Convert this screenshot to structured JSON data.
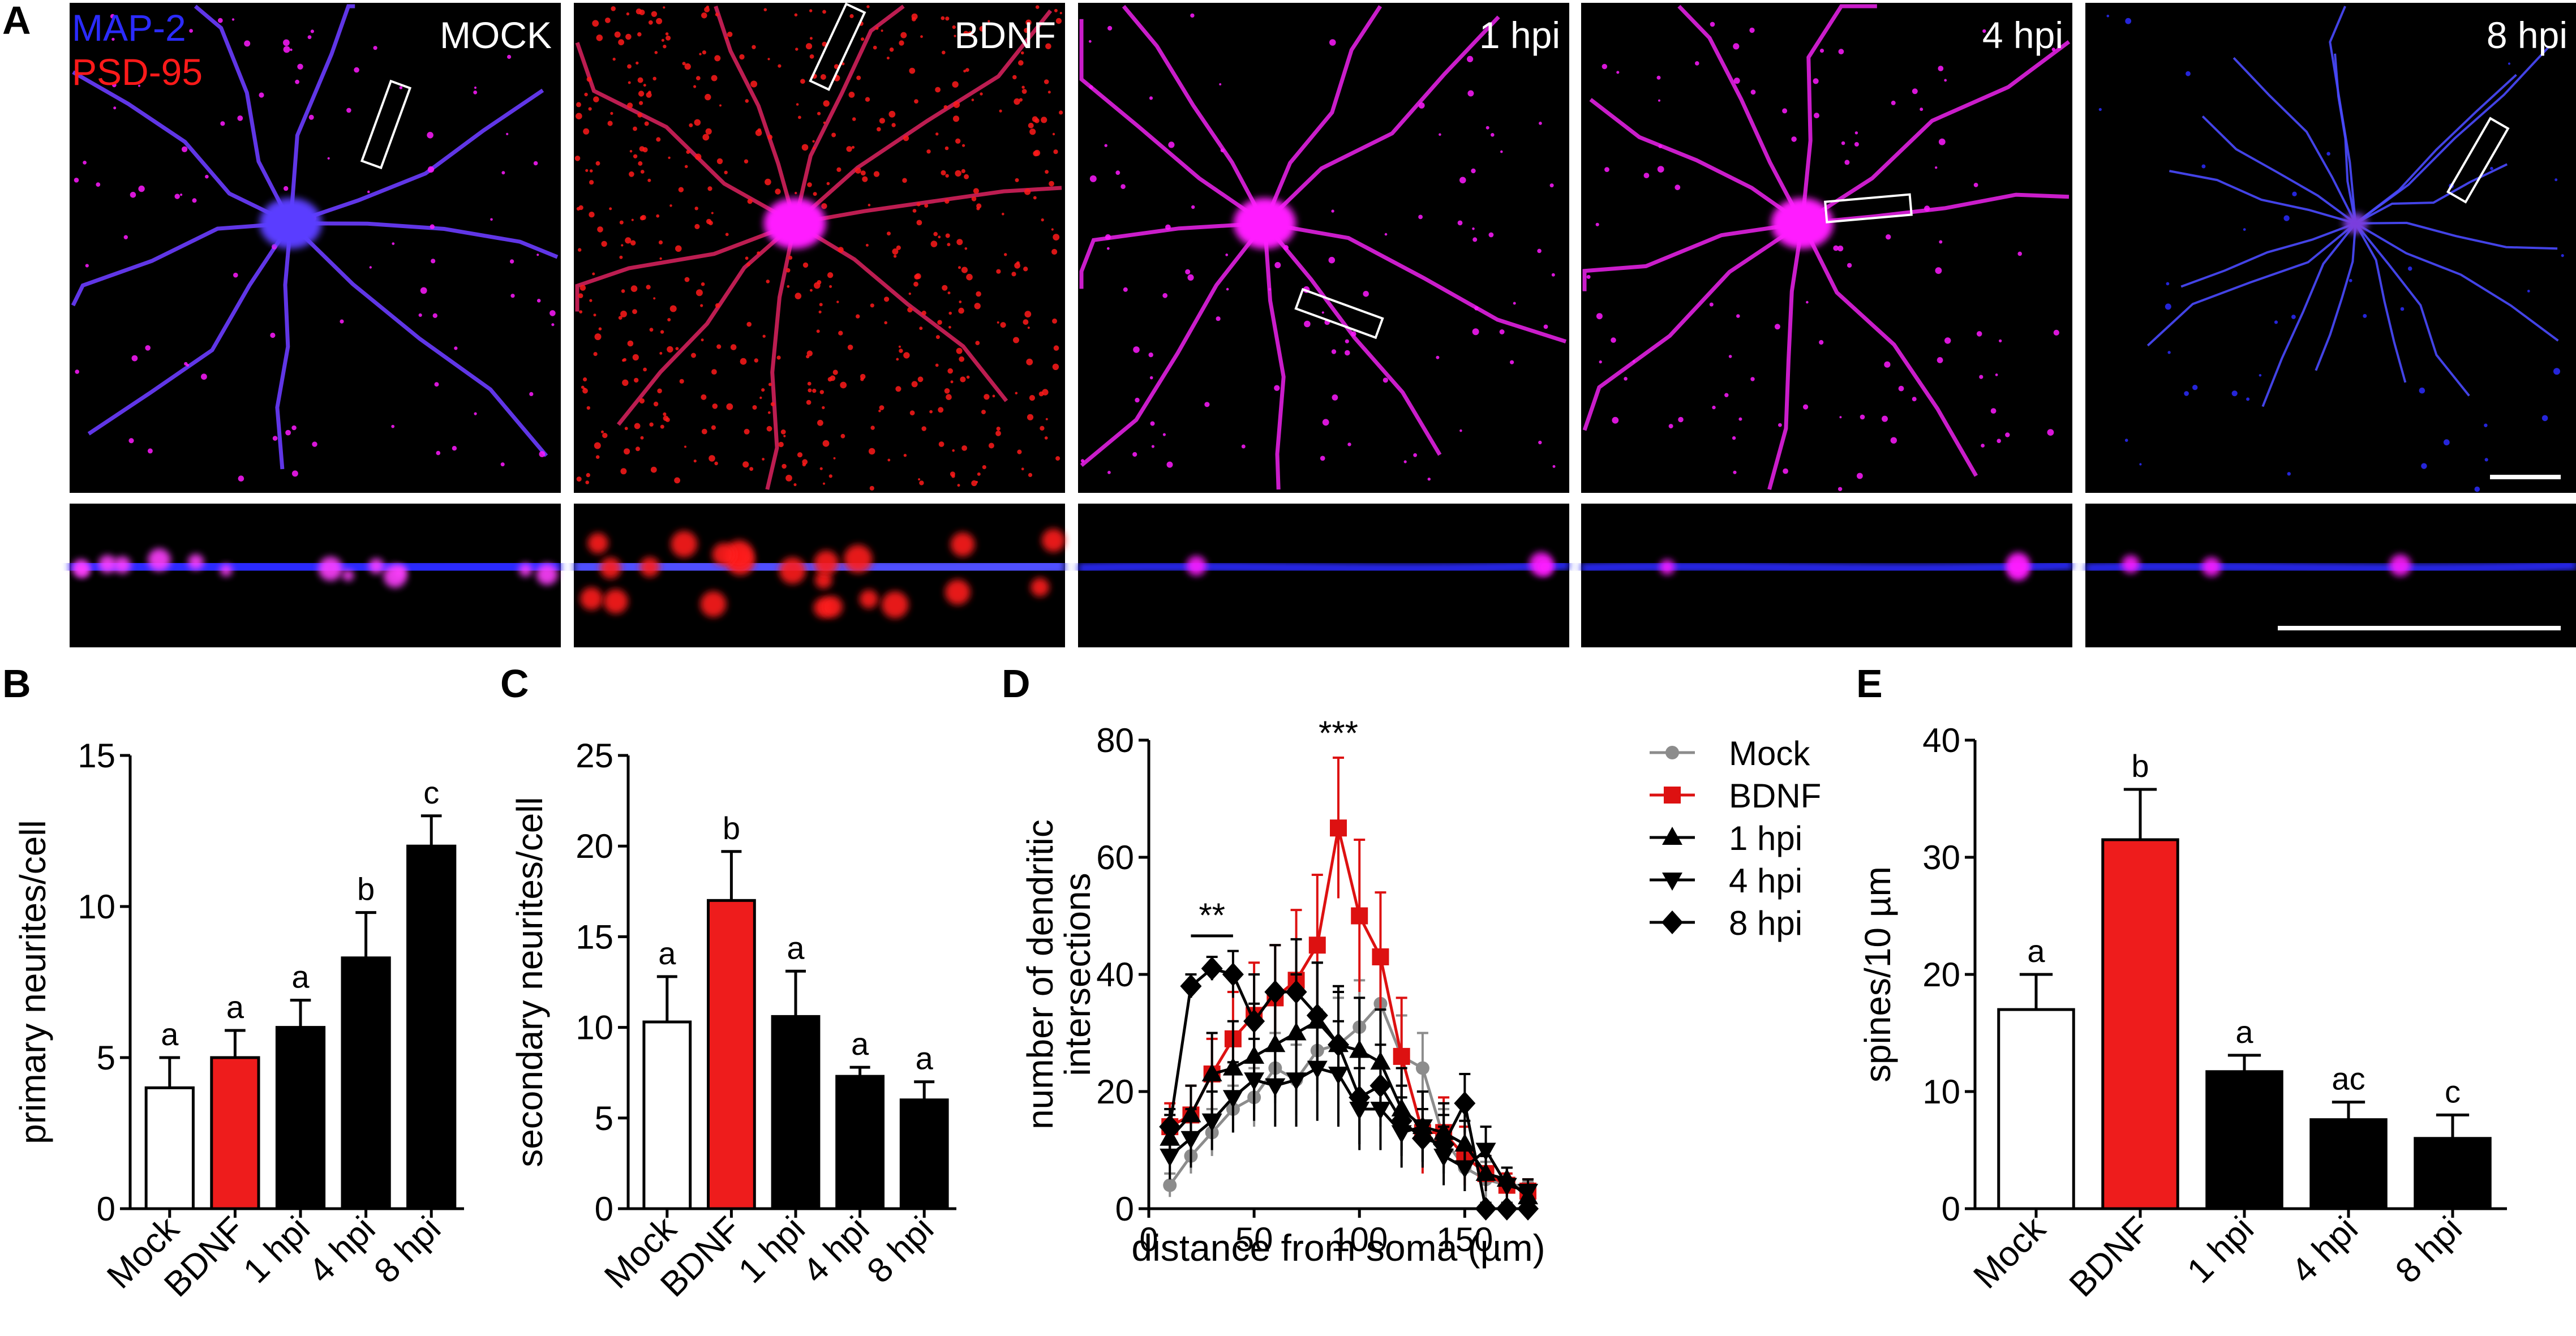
{
  "panel_letters": {
    "A": "A",
    "B": "B",
    "C": "C",
    "D": "D",
    "E": "E"
  },
  "micrographs": {
    "legend_map2": "MAP-2",
    "legend_psd95": "PSD-95",
    "tiles": [
      {
        "label": "MOCK",
        "tone": "blue-magenta"
      },
      {
        "label": "BDNF",
        "tone": "red-puncta"
      },
      {
        "label": "1 hpi",
        "tone": "magenta-neuron"
      },
      {
        "label": "4 hpi",
        "tone": "magenta-neuron"
      },
      {
        "label": "8 hpi",
        "tone": "blue-sparse"
      }
    ],
    "colors": {
      "map2": "#2b2bff",
      "psd95": "#ff1a1a",
      "merge": "#ff1aff",
      "background": "#000000"
    }
  },
  "colors": {
    "mock": "#ffffff",
    "bdnf": "#ee1c1c",
    "hpi": "#000000",
    "mock_line": "#8c8c8c",
    "bdnf_line": "#dd1111"
  },
  "chart_data": [
    {
      "id": "B",
      "type": "bar",
      "ylabel": "primary neurites/cell",
      "ylim": [
        0,
        15
      ],
      "yticks": [
        0,
        5,
        10,
        15
      ],
      "categories": [
        "Mock",
        "BDNF",
        "1 hpi",
        "4 hpi",
        "8 hpi"
      ],
      "values": [
        4.0,
        5.0,
        6.0,
        8.3,
        12.0
      ],
      "errors": [
        1.0,
        0.9,
        0.9,
        1.5,
        1.0
      ],
      "letters": [
        "a",
        "a",
        "a",
        "b",
        "c"
      ]
    },
    {
      "id": "C",
      "type": "bar",
      "ylabel": "secondary neurites/cell",
      "ylim": [
        0,
        25
      ],
      "yticks": [
        0,
        5,
        10,
        15,
        20,
        25
      ],
      "categories": [
        "Mock",
        "BDNF",
        "1 hpi",
        "4 hpi",
        "8 hpi"
      ],
      "values": [
        10.3,
        17.0,
        10.6,
        7.3,
        6.0
      ],
      "errors": [
        2.5,
        2.7,
        2.5,
        0.5,
        1.0
      ],
      "letters": [
        "a",
        "b",
        "a",
        "a",
        "a"
      ]
    },
    {
      "id": "D",
      "type": "line",
      "ylabel": "number of dendritic intersections",
      "ylabel_lines": [
        "number of dendritic",
        "intersections"
      ],
      "xlabel": "distance from soma (µm)",
      "xlim": [
        0,
        180
      ],
      "ylim": [
        0,
        80
      ],
      "xticks": [
        0,
        50,
        100,
        150
      ],
      "yticks": [
        0,
        20,
        40,
        60,
        80
      ],
      "annotations": [
        {
          "text": "**",
          "x": 30,
          "y": 46,
          "bar": [
            20,
            40
          ]
        },
        {
          "text": "***",
          "x": 90,
          "y": 80
        }
      ],
      "x": [
        10,
        20,
        30,
        40,
        50,
        60,
        70,
        80,
        90,
        100,
        110,
        120,
        130,
        140,
        150,
        160,
        170,
        180
      ],
      "series": [
        {
          "name": "Mock",
          "marker": "circle",
          "values": [
            4,
            9,
            13,
            17,
            19,
            24,
            22,
            27,
            28,
            31,
            35,
            26,
            24,
            12,
            7,
            5,
            4,
            4
          ],
          "errors": [
            2,
            3,
            4,
            4,
            5,
            6,
            6,
            7,
            8,
            8,
            8,
            7,
            6,
            5,
            4,
            3,
            2,
            1
          ]
        },
        {
          "name": "BDNF",
          "marker": "square",
          "values": [
            14,
            16,
            23,
            29,
            33,
            36,
            39,
            45,
            65,
            50,
            43,
            26,
            13,
            13,
            9,
            6,
            4,
            3
          ],
          "errors": [
            4,
            5,
            6,
            8,
            9,
            9,
            12,
            12,
            12,
            13,
            11,
            10,
            7,
            6,
            5,
            3,
            2,
            2
          ]
        },
        {
          "name": "1 hpi",
          "marker": "triangle-up",
          "values": [
            12,
            16,
            23,
            24,
            26,
            28,
            30,
            32,
            28,
            27,
            25,
            17,
            14,
            13,
            11,
            6,
            5,
            2
          ],
          "errors": [
            4,
            5,
            7,
            8,
            9,
            9,
            10,
            10,
            10,
            9,
            9,
            7,
            6,
            5,
            4,
            3,
            2,
            1
          ]
        },
        {
          "name": "4 hpi",
          "marker": "triangle-down",
          "values": [
            9,
            12,
            15,
            19,
            22,
            21,
            22,
            24,
            23,
            17,
            17,
            13,
            14,
            9,
            7,
            10,
            4,
            3
          ],
          "errors": [
            4,
            5,
            5,
            6,
            7,
            7,
            8,
            9,
            9,
            7,
            7,
            6,
            6,
            5,
            4,
            4,
            3,
            2
          ]
        },
        {
          "name": "8 hpi",
          "marker": "diamond",
          "values": [
            14,
            38,
            41,
            40,
            32,
            37,
            37,
            33,
            28,
            19,
            21,
            15,
            12,
            11,
            18,
            0,
            0,
            0
          ],
          "errors": [
            3,
            2,
            2,
            4,
            8,
            8,
            9,
            9,
            9,
            8,
            7,
            6,
            5,
            5,
            5,
            1,
            1,
            1
          ]
        }
      ]
    },
    {
      "id": "E",
      "type": "bar",
      "ylabel": "spines/10 µm",
      "ylim": [
        0,
        40
      ],
      "yticks": [
        0,
        10,
        20,
        30,
        40
      ],
      "categories": [
        "Mock",
        "BDNF",
        "1 hpi",
        "4 hpi",
        "8 hpi"
      ],
      "values": [
        17.0,
        31.5,
        11.7,
        7.6,
        6.0
      ],
      "errors": [
        3.0,
        4.3,
        1.4,
        1.5,
        2.0
      ],
      "letters": [
        "a",
        "b",
        "a",
        "ac",
        "c"
      ]
    }
  ]
}
